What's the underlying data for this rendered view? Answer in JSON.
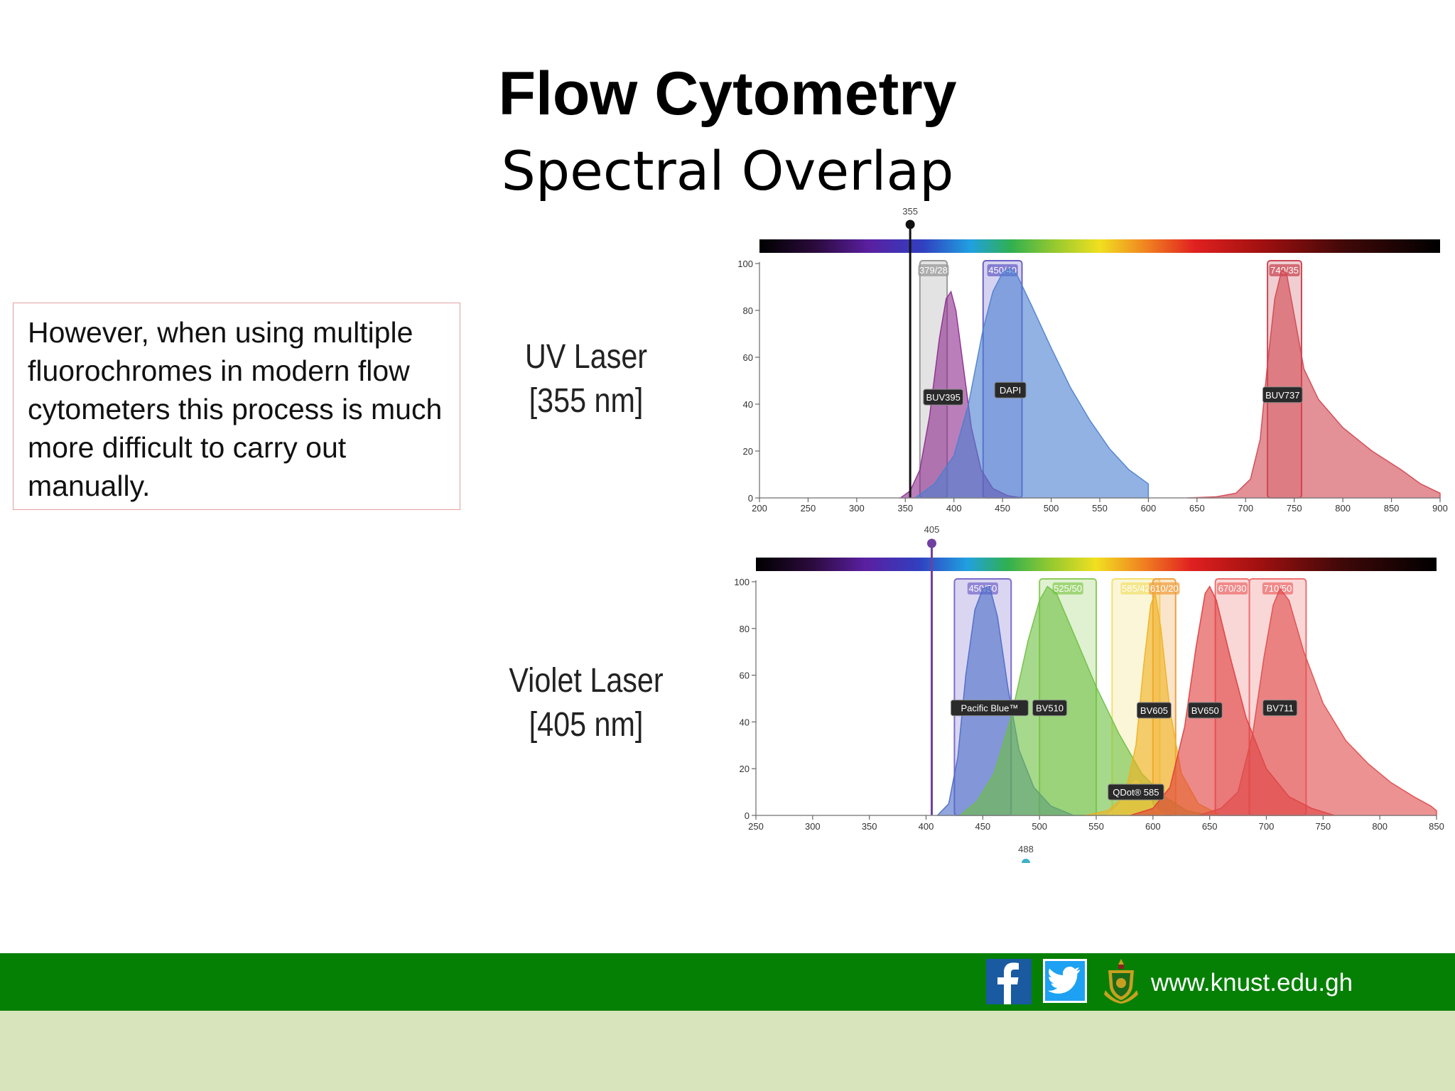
{
  "slide": {
    "title": "Flow Cytometry",
    "subtitle": "Spectral Overlap",
    "body_text": " However, when using multiple fluorochromes in modern flow cytometers this process is much more difficult to carry out manually."
  },
  "footer": {
    "url": "www.knust.edu.gh",
    "bar_color": "#058005",
    "bottom_color": "#d8e4bc",
    "icons": [
      "facebook-icon",
      "twitter-icon",
      "knust-crest-icon"
    ]
  },
  "chart_data": [
    {
      "type": "area",
      "panel_label": [
        "UV Laser",
        "[355 nm]"
      ],
      "xlim": [
        200,
        900
      ],
      "ylim": [
        0,
        100
      ],
      "x_ticks": [
        200,
        250,
        300,
        350,
        400,
        450,
        500,
        550,
        600,
        650,
        700,
        750,
        800,
        850,
        900
      ],
      "y_ticks": [
        0,
        20,
        40,
        60,
        80,
        100
      ],
      "laser": {
        "wavelength": 355,
        "label": "355",
        "color": "#111111"
      },
      "filters": [
        {
          "label": "379/28",
          "center": 379,
          "width": 28,
          "color": "#9a9a9a"
        },
        {
          "label": "450/40",
          "center": 450,
          "width": 40,
          "color": "#6a62c8"
        },
        {
          "label": "740/35",
          "center": 740,
          "width": 35,
          "color": "#c94a55"
        }
      ],
      "series": [
        {
          "name": "BUV395",
          "color": "#8c2a8c",
          "label_at": [
            389,
            43
          ],
          "points": [
            [
              345,
              0
            ],
            [
              355,
              3
            ],
            [
              365,
              12
            ],
            [
              375,
              35
            ],
            [
              385,
              68
            ],
            [
              392,
              85
            ],
            [
              397,
              88
            ],
            [
              402,
              80
            ],
            [
              410,
              55
            ],
            [
              418,
              30
            ],
            [
              428,
              12
            ],
            [
              440,
              4
            ],
            [
              455,
              1
            ],
            [
              470,
              0
            ]
          ]
        },
        {
          "name": "DAPI",
          "color": "#4a7fd0",
          "label_at": [
            458,
            46
          ],
          "points": [
            [
              360,
              0
            ],
            [
              380,
              6
            ],
            [
              400,
              18
            ],
            [
              415,
              40
            ],
            [
              430,
              72
            ],
            [
              440,
              88
            ],
            [
              450,
              96
            ],
            [
              458,
              98
            ],
            [
              465,
              95
            ],
            [
              480,
              82
            ],
            [
              500,
              64
            ],
            [
              520,
              47
            ],
            [
              540,
              33
            ],
            [
              560,
              21
            ],
            [
              580,
              12
            ],
            [
              600,
              6
            ],
            [
              600,
              0
            ]
          ]
        },
        {
          "name": "BUV737",
          "color": "#d04650",
          "label_at": [
            738,
            44
          ],
          "points": [
            [
              640,
              0
            ],
            [
              670,
              0.5
            ],
            [
              690,
              2
            ],
            [
              705,
              8
            ],
            [
              715,
              25
            ],
            [
              722,
              55
            ],
            [
              730,
              85
            ],
            [
              737,
              97
            ],
            [
              742,
              96
            ],
            [
              750,
              78
            ],
            [
              760,
              55
            ],
            [
              775,
              42
            ],
            [
              800,
              30
            ],
            [
              830,
              20
            ],
            [
              860,
              12
            ],
            [
              880,
              6
            ],
            [
              900,
              2
            ],
            [
              900,
              0
            ]
          ]
        }
      ]
    },
    {
      "type": "area",
      "panel_label": [
        "Violet Laser",
        "[405 nm]"
      ],
      "xlim": [
        250,
        850
      ],
      "ylim": [
        0,
        100
      ],
      "x_ticks": [
        250,
        300,
        350,
        400,
        450,
        500,
        550,
        600,
        650,
        700,
        750,
        800,
        850
      ],
      "y_ticks": [
        0,
        20,
        40,
        60,
        80,
        100
      ],
      "laser": {
        "wavelength": 405,
        "label": "405",
        "color": "#7040a0"
      },
      "secondary_marker": {
        "wavelength": 488,
        "label": "488",
        "color": "#3fb0c8"
      },
      "filters": [
        {
          "label": "450/50",
          "center": 450,
          "width": 50,
          "color": "#7a6ccc"
        },
        {
          "label": "525/50",
          "center": 525,
          "width": 50,
          "color": "#8ccc5a"
        },
        {
          "label": "585/42",
          "center": 585,
          "width": 42,
          "color": "#f2e070"
        },
        {
          "label": "610/20",
          "center": 610,
          "width": 20,
          "color": "#f0a040"
        },
        {
          "label": "670/30",
          "center": 670,
          "width": 30,
          "color": "#ee7070"
        },
        {
          "label": "710/50",
          "center": 710,
          "width": 50,
          "color": "#ee7070"
        }
      ],
      "series": [
        {
          "name": "Pacific Blue™",
          "color": "#4a6ac8",
          "label_at": [
            456,
            46
          ],
          "points": [
            [
              410,
              0
            ],
            [
              420,
              5
            ],
            [
              428,
              25
            ],
            [
              435,
              60
            ],
            [
              443,
              88
            ],
            [
              450,
              97
            ],
            [
              456,
              98
            ],
            [
              463,
              85
            ],
            [
              472,
              55
            ],
            [
              482,
              28
            ],
            [
              495,
              12
            ],
            [
              510,
              4
            ],
            [
              530,
              0
            ]
          ]
        },
        {
          "name": "BV510",
          "color": "#6cc040",
          "label_at": [
            509,
            46
          ],
          "points": [
            [
              430,
              0
            ],
            [
              445,
              6
            ],
            [
              460,
              18
            ],
            [
              475,
              42
            ],
            [
              490,
              75
            ],
            [
              500,
              92
            ],
            [
              507,
              98
            ],
            [
              515,
              95
            ],
            [
              530,
              78
            ],
            [
              550,
              55
            ],
            [
              570,
              35
            ],
            [
              590,
              18
            ],
            [
              610,
              8
            ],
            [
              630,
              2
            ],
            [
              650,
              0
            ]
          ]
        },
        {
          "name": "BV605",
          "color": "#f0b020",
          "label_at": [
            601,
            45
          ],
          "points": [
            [
              540,
              0
            ],
            [
              560,
              2
            ],
            [
              575,
              8
            ],
            [
              585,
              30
            ],
            [
              592,
              65
            ],
            [
              598,
              90
            ],
            [
              602,
              95
            ],
            [
              607,
              80
            ],
            [
              615,
              45
            ],
            [
              625,
              18
            ],
            [
              640,
              5
            ],
            [
              660,
              0
            ]
          ]
        },
        {
          "name": "QDot® 585",
          "color": "#e8c840",
          "label_at": [
            585,
            10
          ],
          "points": [
            [
              560,
              0
            ],
            [
              570,
              4
            ],
            [
              578,
              12
            ],
            [
              585,
              15
            ],
            [
              592,
              12
            ],
            [
              600,
              4
            ],
            [
              610,
              0
            ]
          ]
        },
        {
          "name": "BV650",
          "color": "#e03a3a",
          "label_at": [
            646,
            45
          ],
          "points": [
            [
              580,
              0
            ],
            [
              600,
              3
            ],
            [
              615,
              12
            ],
            [
              628,
              38
            ],
            [
              638,
              72
            ],
            [
              646,
              95
            ],
            [
              650,
              98
            ],
            [
              656,
              92
            ],
            [
              668,
              68
            ],
            [
              682,
              42
            ],
            [
              700,
              20
            ],
            [
              720,
              8
            ],
            [
              740,
              3
            ],
            [
              760,
              0
            ]
          ]
        },
        {
          "name": "BV711",
          "color": "#e04a4a",
          "label_at": [
            712,
            46
          ],
          "points": [
            [
              640,
              0
            ],
            [
              660,
              3
            ],
            [
              675,
              10
            ],
            [
              688,
              35
            ],
            [
              698,
              68
            ],
            [
              706,
              90
            ],
            [
              712,
              97
            ],
            [
              720,
              92
            ],
            [
              733,
              70
            ],
            [
              750,
              48
            ],
            [
              770,
              32
            ],
            [
              790,
              22
            ],
            [
              810,
              14
            ],
            [
              830,
              8
            ],
            [
              845,
              4
            ],
            [
              850,
              2
            ],
            [
              850,
              0
            ]
          ]
        }
      ]
    }
  ]
}
